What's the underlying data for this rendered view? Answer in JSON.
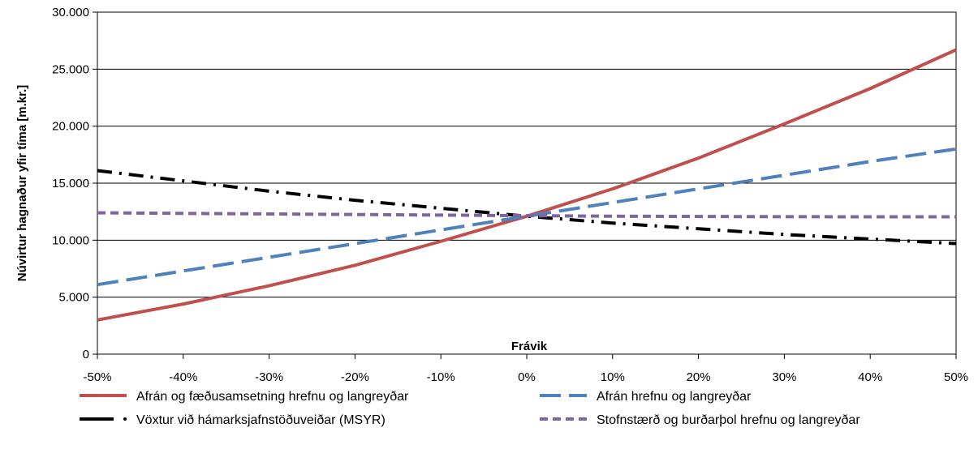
{
  "chart_data": {
    "type": "line",
    "title": "",
    "xlabel": "Frávik",
    "ylabel": "Núvirtur hagnaður yfir tíma [m.kr.]",
    "x": [
      -0.5,
      -0.4,
      -0.3,
      -0.2,
      -0.1,
      0,
      0.1,
      0.2,
      0.3,
      0.4,
      0.5
    ],
    "xticks": [
      "-50%",
      "-40%",
      "-30%",
      "-20%",
      "-10%",
      "0%",
      "10%",
      "20%",
      "30%",
      "40%",
      "50%"
    ],
    "xlim": [
      -0.5,
      0.5
    ],
    "ylim": [
      0,
      30000
    ],
    "yticks": [
      0,
      5000,
      10000,
      15000,
      20000,
      25000,
      30000
    ],
    "yticklabels": [
      "0",
      "5.000",
      "10.000",
      "15.000",
      "20.000",
      "25.000",
      "30.000"
    ],
    "grid": "horizontal",
    "legend_position": "bottom",
    "series": [
      {
        "name": "Afrán og fæðusamsetning hrefnu og langreyðar",
        "color": "#c0504d",
        "style": "solid",
        "values": [
          3000,
          4400,
          6000,
          7800,
          9900,
          12100,
          14500,
          17200,
          20200,
          23300,
          26700
        ]
      },
      {
        "name": "Afrán hrefnu og langreyðar",
        "color": "#4f81bd",
        "style": "longdash",
        "values": [
          6100,
          7300,
          8500,
          9700,
          10900,
          12100,
          13300,
          14500,
          15700,
          16900,
          18000
        ]
      },
      {
        "name": "Vöxtur við hámarksjafnstöðuveiðar (MSYR)",
        "color": "#000000",
        "style": "dashdot",
        "values": [
          16100,
          15200,
          14300,
          13500,
          12800,
          12100,
          11500,
          11000,
          10500,
          10100,
          9700
        ]
      },
      {
        "name": "Stofnstærð og burðarþol hrefnu og langreyðar",
        "color": "#8064a2",
        "style": "shortdash",
        "values": [
          12400,
          12350,
          12300,
          12250,
          12200,
          12150,
          12100,
          12080,
          12060,
          12050,
          12050
        ]
      }
    ]
  }
}
